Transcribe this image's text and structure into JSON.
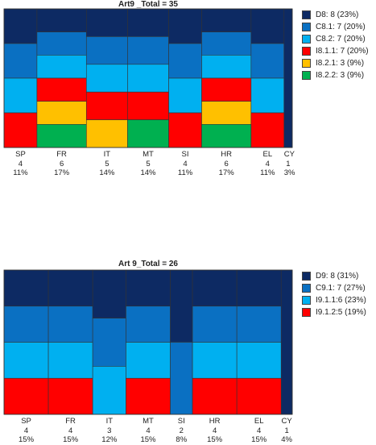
{
  "charts": [
    {
      "id": "top",
      "chart_data": {
        "type": "mosaic",
        "title": "Art9 _Total = 35",
        "categories": [
          "SP",
          "FR",
          "IT",
          "MT",
          "SI",
          "HR",
          "EL",
          "CY"
        ],
        "counts": [
          "4",
          "6",
          "5",
          "5",
          "4",
          "6",
          "4",
          "1"
        ],
        "percents": [
          "11%",
          "17%",
          "14%",
          "14%",
          "11%",
          "17%",
          "11%",
          "3%"
        ],
        "weights": [
          4,
          6,
          5,
          5,
          4,
          6,
          4,
          1
        ],
        "series": [
          {
            "name": "D8: 8 (23%)",
            "color": "#0d2a63",
            "values": [
              1,
              1,
              1,
              1,
              1,
              1,
              1,
              1
            ]
          },
          {
            "name": "C8.1: 7 (20%)",
            "color": "#0a70c2",
            "values": [
              1,
              1,
              1,
              1,
              1,
              1,
              1,
              0
            ]
          },
          {
            "name": "C8.2: 7 (20%)",
            "color": "#00b0f0",
            "values": [
              1,
              1,
              1,
              1,
              1,
              1,
              1,
              0
            ]
          },
          {
            "name": "I8.1.1: 7 (20%)",
            "color": "#ff0000",
            "values": [
              1,
              1,
              1,
              1,
              1,
              1,
              1,
              0
            ]
          },
          {
            "name": "I8.2.1: 3 (9%)",
            "color": "#ffc000",
            "values": [
              0,
              1,
              1,
              0,
              0,
              1,
              0,
              0
            ]
          },
          {
            "name": "I8.2.2: 3 (9%)",
            "color": "#00b050",
            "values": [
              0,
              1,
              0,
              1,
              0,
              1,
              0,
              0
            ]
          }
        ]
      }
    },
    {
      "id": "bottom",
      "chart_data": {
        "type": "mosaic",
        "title": "Art 9_Total = 26",
        "categories": [
          "SP",
          "FR",
          "IT",
          "MT",
          "SI",
          "HR",
          "EL",
          "CY"
        ],
        "counts": [
          "4",
          "4",
          "3",
          "4",
          "2",
          "4",
          "4",
          "1"
        ],
        "percents": [
          "15%",
          "15%",
          "12%",
          "15%",
          "8%",
          "15%",
          "15%",
          "4%"
        ],
        "weights": [
          4,
          4,
          3,
          4,
          2,
          4,
          4,
          1
        ],
        "series": [
          {
            "name": "D9: 8 (31%)",
            "color": "#0d2a63",
            "values": [
              1,
              1,
              1,
              1,
              1,
              1,
              1,
              1
            ]
          },
          {
            "name": "C9.1: 7 (27%)",
            "color": "#0a70c2",
            "values": [
              1,
              1,
              1,
              1,
              1,
              1,
              1,
              0
            ]
          },
          {
            "name": "I9.1.1:6 (23%)",
            "color": "#00b0f0",
            "values": [
              1,
              1,
              1,
              1,
              0,
              1,
              1,
              0
            ]
          },
          {
            "name": "I9.1.2:5 (19%)",
            "color": "#ff0000",
            "values": [
              1,
              1,
              0,
              1,
              0,
              1,
              1,
              0
            ]
          }
        ]
      }
    }
  ]
}
